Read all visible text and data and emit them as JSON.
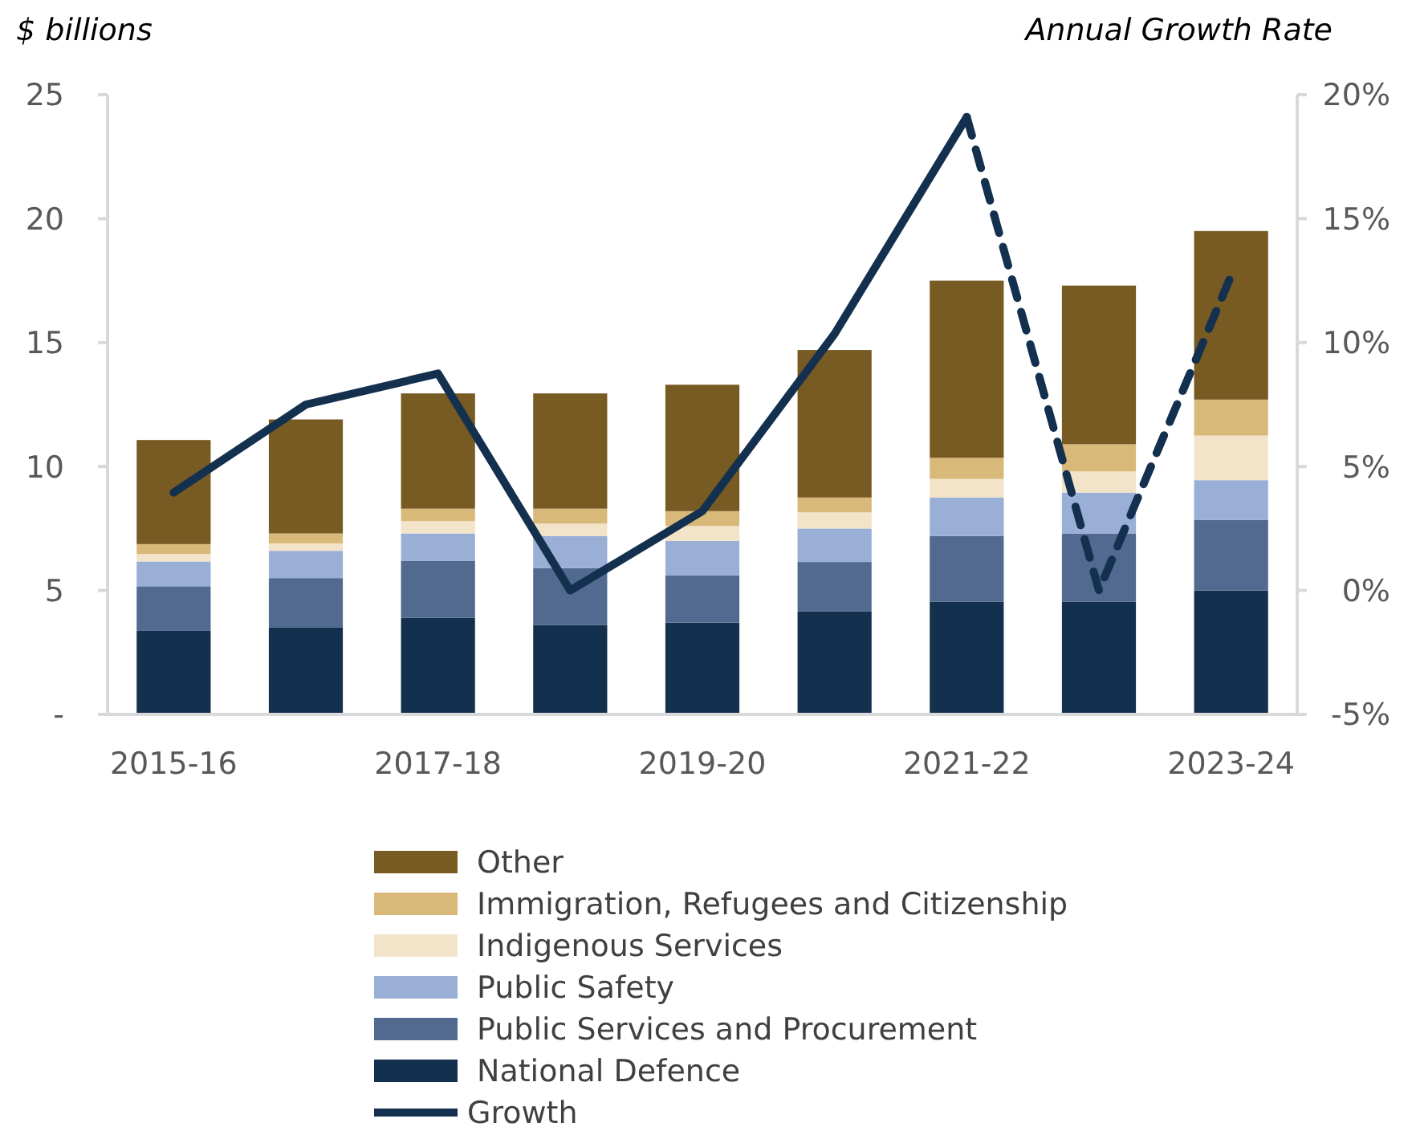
{
  "chart_data": {
    "type": "bar",
    "stacked": true,
    "ylabel": "$ billions",
    "y2label": "Annual Growth Rate",
    "categories": [
      "2015-16",
      null,
      "2017-18",
      null,
      "2019-20",
      null,
      "2021-22",
      null,
      "2023-24"
    ],
    "series": [
      {
        "name": "National Defence",
        "color": "#14304f",
        "values": [
          3.37,
          3.5,
          3.9,
          3.6,
          3.7,
          4.15,
          4.55,
          4.55,
          5.0
        ]
      },
      {
        "name": "Public Services and Procurement",
        "color": "#526a8f",
        "values": [
          1.8,
          2.0,
          2.3,
          2.3,
          1.9,
          2.0,
          2.65,
          2.75,
          2.85
        ]
      },
      {
        "name": "Public Safety",
        "color": "#9aafd6",
        "values": [
          1.0,
          1.1,
          1.1,
          1.3,
          1.4,
          1.35,
          1.55,
          1.65,
          1.6
        ]
      },
      {
        "name": "Indigenous Services",
        "color": "#f2e3c9",
        "values": [
          0.3,
          0.3,
          0.5,
          0.5,
          0.6,
          0.65,
          0.75,
          0.85,
          1.8
        ]
      },
      {
        "name": "Immigration, Refugees and Citizenship",
        "color": "#d9b97a",
        "values": [
          0.4,
          0.4,
          0.5,
          0.6,
          0.6,
          0.6,
          0.85,
          1.1,
          1.45
        ]
      },
      {
        "name": "Other",
        "color": "#785a23",
        "values": [
          4.2,
          4.6,
          4.65,
          4.65,
          5.1,
          5.95,
          7.15,
          6.4,
          6.8
        ]
      },
      {
        "name": "Growth",
        "type": "line",
        "axis": "y2",
        "line_style": "solid",
        "color": "#14304f",
        "values": [
          3.95,
          7.5,
          8.75,
          0,
          3.2,
          10.35,
          19.1,
          null,
          null
        ]
      },
      {
        "type": "line",
        "axis": "y2",
        "line_style": "dashed",
        "color": "#14304f",
        "values": [
          null,
          null,
          null,
          null,
          null,
          null,
          19.1,
          0,
          12.7
        ]
      }
    ],
    "ylim": [
      0,
      25
    ],
    "yticks": [
      {
        "value": 0,
        "label": "-"
      },
      5,
      10,
      15,
      20,
      25
    ],
    "y2lim": [
      -5,
      20
    ],
    "y2ticks": [
      {
        "value": -5,
        "label": "-5%"
      },
      {
        "value": 0,
        "label": "0%"
      },
      {
        "value": 5,
        "label": "5%"
      },
      {
        "value": 10,
        "label": "10%"
      },
      {
        "value": 15,
        "label": "15%"
      },
      {
        "value": 20,
        "label": "20%"
      }
    ],
    "grid": false,
    "legend": "bottom",
    "marker": "none"
  }
}
